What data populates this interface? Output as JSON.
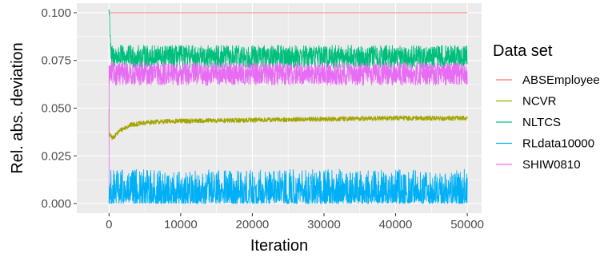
{
  "chart_data": {
    "type": "line",
    "xlabel": "Iteration",
    "ylabel": "Rel. abs. deviation",
    "xlim": [
      -4500,
      52000
    ],
    "ylim": [
      -0.005,
      0.105
    ],
    "x_ticks": [
      0,
      10000,
      20000,
      30000,
      40000,
      50000
    ],
    "x_tick_labels": [
      "0",
      "10000",
      "20000",
      "30000",
      "40000",
      "50000"
    ],
    "y_ticks": [
      0.0,
      0.025,
      0.05,
      0.075,
      0.1
    ],
    "y_tick_labels": [
      "0.000",
      "0.025",
      "0.050",
      "0.075",
      "0.100"
    ],
    "grid": true,
    "background": "#ebebeb",
    "legend": {
      "title": "Data set",
      "position": "right"
    },
    "series": [
      {
        "name": "ABSEmployee",
        "color": "#F8766D",
        "start_value": 0.1,
        "points": [
          [
            0,
            0.1
          ],
          [
            10000,
            0.1
          ],
          [
            20000,
            0.1
          ],
          [
            30000,
            0.1
          ],
          [
            40000,
            0.1
          ],
          [
            50000,
            0.1
          ]
        ],
        "spread": [
          0.0,
          0.0
        ]
      },
      {
        "name": "NCVR",
        "color": "#A3A500",
        "start_value": 0.05,
        "points": [
          [
            0,
            0.036
          ],
          [
            500,
            0.034
          ],
          [
            1500,
            0.038
          ],
          [
            3000,
            0.041
          ],
          [
            6000,
            0.0425
          ],
          [
            10000,
            0.043
          ],
          [
            20000,
            0.0435
          ],
          [
            30000,
            0.044
          ],
          [
            40000,
            0.0445
          ],
          [
            50000,
            0.0445
          ]
        ],
        "spread": [
          -0.001,
          0.0015
        ]
      },
      {
        "name": "NLTCS",
        "color": "#00BF7D",
        "start_value": 0.1,
        "points": [
          [
            0,
            0.1
          ],
          [
            300,
            0.075
          ],
          [
            10000,
            0.075
          ],
          [
            20000,
            0.075
          ],
          [
            30000,
            0.075
          ],
          [
            40000,
            0.075
          ],
          [
            50000,
            0.075
          ]
        ],
        "spread": [
          -0.004,
          0.008
        ]
      },
      {
        "name": "RLdata10000",
        "color": "#00B0F6",
        "start_value": 0.0,
        "points": [
          [
            0,
            0.0
          ],
          [
            10000,
            0.0
          ],
          [
            20000,
            0.0
          ],
          [
            30000,
            0.0
          ],
          [
            40000,
            0.0
          ],
          [
            50000,
            0.0
          ]
        ],
        "spread": [
          0.0,
          0.018
        ]
      },
      {
        "name": "SHIW0810",
        "color": "#E76BF3",
        "start_value": 0.0,
        "points": [
          [
            0,
            0.07
          ],
          [
            10000,
            0.07
          ],
          [
            20000,
            0.07
          ],
          [
            30000,
            0.07
          ],
          [
            40000,
            0.07
          ],
          [
            50000,
            0.07
          ]
        ],
        "spread": [
          -0.008,
          0.004
        ]
      }
    ]
  }
}
